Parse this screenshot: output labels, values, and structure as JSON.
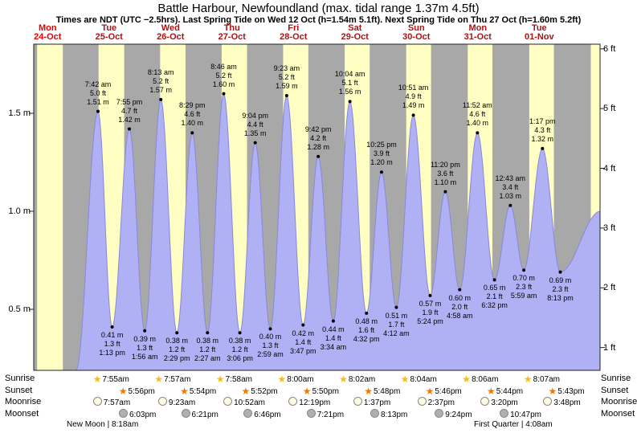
{
  "title": "Battle Harbour, Newfoundland (max. tidal range 1.37m 4.5ft)",
  "subtitle": "Times are NDT (UTC −2.5hrs). Last Spring Tide on Wed 12 Oct (h=1.54m 5.1ft). Next Spring Tide on Thu 27 Oct (h=1.60m 5.2ft)",
  "days": [
    {
      "dow": "Mon",
      "date": "24-Oct",
      "today": true
    },
    {
      "dow": "Tue",
      "date": "25-Oct",
      "today": false
    },
    {
      "dow": "Wed",
      "date": "26-Oct",
      "today": false
    },
    {
      "dow": "Thu",
      "date": "27-Oct",
      "today": false
    },
    {
      "dow": "Fri",
      "date": "28-Oct",
      "today": false
    },
    {
      "dow": "Sat",
      "date": "29-Oct",
      "today": false
    },
    {
      "dow": "Sun",
      "date": "30-Oct",
      "today": false
    },
    {
      "dow": "Mon",
      "date": "31-Oct",
      "today": false
    },
    {
      "dow": "Tue",
      "date": "01-Nov",
      "today": false
    }
  ],
  "chart_data": {
    "type": "area",
    "title": "Battle Harbour, Newfoundland (max. tidal range 1.37m 4.5ft)",
    "x_axis": {
      "unit": "hours since Mon 24 Oct 00:00 NDT",
      "span_days": 9
    },
    "y_axis_left": {
      "unit": "m",
      "tick_labels": [
        "1.5 m",
        "1.0 m",
        "0.5 m"
      ],
      "tick_values": [
        1.5,
        1.0,
        0.5
      ]
    },
    "y_axis_right": {
      "unit": "ft",
      "tick_labels": [
        "6 ft",
        "5 ft",
        "4 ft",
        "3 ft",
        "2 ft",
        "1 ft"
      ],
      "tick_values": [
        6,
        5,
        4,
        3,
        2,
        1
      ]
    },
    "tide_events": [
      {
        "kind": "high",
        "t": 31.7,
        "h": 1.51,
        "time": "7:42 am",
        "ft": "5.0 ft",
        "m": "1.51 m"
      },
      {
        "kind": "low",
        "t": 37.22,
        "h": 0.41,
        "time": "1:13 pm",
        "ft": "1.3 ft",
        "m": "0.41 m"
      },
      {
        "kind": "high",
        "t": 43.92,
        "h": 1.42,
        "time": "7:55 pm",
        "ft": "4.7 ft",
        "m": "1.42 m"
      },
      {
        "kind": "low",
        "t": 49.93,
        "h": 0.39,
        "time": "1:56 am",
        "ft": "1.3 ft",
        "m": "0.39 m"
      },
      {
        "kind": "high",
        "t": 56.22,
        "h": 1.57,
        "time": "8:13 am",
        "ft": "5.2 ft",
        "m": "1.57 m"
      },
      {
        "kind": "low",
        "t": 62.48,
        "h": 0.38,
        "time": "2:29 pm",
        "ft": "1.2 ft",
        "m": "0.38 m"
      },
      {
        "kind": "high",
        "t": 68.48,
        "h": 1.4,
        "time": "8:29 pm",
        "ft": "4.6 ft",
        "m": "1.40 m"
      },
      {
        "kind": "low",
        "t": 74.45,
        "h": 0.38,
        "time": "2:27 am",
        "ft": "1.2 ft",
        "m": "0.38 m"
      },
      {
        "kind": "high",
        "t": 80.77,
        "h": 1.6,
        "time": "8:46 am",
        "ft": "5.2 ft",
        "m": "1.60 m"
      },
      {
        "kind": "low",
        "t": 87.1,
        "h": 0.38,
        "time": "3:06 pm",
        "ft": "1.2 ft",
        "m": "0.38 m"
      },
      {
        "kind": "high",
        "t": 93.07,
        "h": 1.35,
        "time": "9:04 pm",
        "ft": "4.4 ft",
        "m": "1.35 m"
      },
      {
        "kind": "low",
        "t": 98.98,
        "h": 0.4,
        "time": "2:59 am",
        "ft": "1.3 ft",
        "m": "0.40 m"
      },
      {
        "kind": "high",
        "t": 105.38,
        "h": 1.59,
        "time": "9:23 am",
        "ft": "5.2 ft",
        "m": "1.59 m"
      },
      {
        "kind": "low",
        "t": 111.78,
        "h": 0.42,
        "time": "3:47 pm",
        "ft": "1.4 ft",
        "m": "0.42 m"
      },
      {
        "kind": "high",
        "t": 117.7,
        "h": 1.28,
        "time": "9:42 pm",
        "ft": "4.2 ft",
        "m": "1.28 m"
      },
      {
        "kind": "low",
        "t": 123.57,
        "h": 0.44,
        "time": "3:34 am",
        "ft": "1.4 ft",
        "m": "0.44 m"
      },
      {
        "kind": "high",
        "t": 130.07,
        "h": 1.56,
        "time": "10:04 am",
        "ft": "5.1 ft",
        "m": "1.56 m"
      },
      {
        "kind": "low",
        "t": 136.53,
        "h": 0.48,
        "time": "4:32 pm",
        "ft": "1.6 ft",
        "m": "0.48 m"
      },
      {
        "kind": "high",
        "t": 142.42,
        "h": 1.2,
        "time": "10:25 pm",
        "ft": "3.9 ft",
        "m": "1.20 m"
      },
      {
        "kind": "low",
        "t": 148.2,
        "h": 0.51,
        "time": "4:12 am",
        "ft": "1.7 ft",
        "m": "0.51 m"
      },
      {
        "kind": "high",
        "t": 154.85,
        "h": 1.49,
        "time": "10:51 am",
        "ft": "4.9 ft",
        "m": "1.49 m"
      },
      {
        "kind": "low",
        "t": 161.4,
        "h": 0.57,
        "time": "5:24 pm",
        "ft": "1.9 ft",
        "m": "0.57 m"
      },
      {
        "kind": "high",
        "t": 167.33,
        "h": 1.1,
        "time": "11:20 pm",
        "ft": "3.6 ft",
        "m": "1.10 m"
      },
      {
        "kind": "low",
        "t": 172.97,
        "h": 0.6,
        "time": "4:58 am",
        "ft": "2.0 ft",
        "m": "0.60 m"
      },
      {
        "kind": "high",
        "t": 179.87,
        "h": 1.4,
        "time": "11:52 am",
        "ft": "4.6 ft",
        "m": "1.40 m"
      },
      {
        "kind": "low",
        "t": 186.53,
        "h": 0.65,
        "time": "6:32 pm",
        "ft": "2.1 ft",
        "m": "0.65 m"
      },
      {
        "kind": "high",
        "t": 192.72,
        "h": 1.03,
        "time": "12:43 am",
        "ft": "3.4 ft",
        "m": "1.03 m"
      },
      {
        "kind": "low",
        "t": 197.98,
        "h": 0.7,
        "time": "5:59 am",
        "ft": "2.3 ft",
        "m": "0.70 m"
      },
      {
        "kind": "high",
        "t": 205.28,
        "h": 1.32,
        "time": "1:17 pm",
        "ft": "4.3 ft",
        "m": "1.32 m"
      },
      {
        "kind": "low",
        "t": 212.22,
        "h": 0.69,
        "time": "8:13 pm",
        "ft": "2.3 ft",
        "m": "0.69 m"
      }
    ],
    "edge_points": [
      {
        "t": 23.2,
        "h": 0.19
      },
      {
        "t": 227.9,
        "h": 1.0
      }
    ],
    "daylight_bands_hours": [
      [
        7.9,
        17.95
      ],
      [
        31.92,
        41.93
      ],
      [
        55.95,
        65.9
      ],
      [
        79.97,
        89.87
      ],
      [
        104.0,
        113.83
      ],
      [
        128.03,
        137.8
      ],
      [
        152.07,
        161.77
      ],
      [
        176.1,
        185.73
      ],
      [
        200.12,
        209.72
      ],
      [
        224.15,
        234.0
      ]
    ]
  },
  "almanac": {
    "rows": [
      {
        "name": "sunrise",
        "label": "Sunrise",
        "icon": "sunrise-star-icon",
        "entries": [
          {
            "time": "7:55am",
            "t": 31.92
          },
          {
            "time": "7:57am",
            "t": 55.95
          },
          {
            "time": "7:58am",
            "t": 79.97
          },
          {
            "time": "8:00am",
            "t": 104.0
          },
          {
            "time": "8:02am",
            "t": 128.03
          },
          {
            "time": "8:04am",
            "t": 152.07
          },
          {
            "time": "8:06am",
            "t": 176.1
          },
          {
            "time": "8:07am",
            "t": 200.12
          }
        ]
      },
      {
        "name": "sunset",
        "label": "Sunset",
        "icon": "sunset-star-icon",
        "entries": [
          {
            "time": "5:56pm",
            "t": 41.93
          },
          {
            "time": "5:54pm",
            "t": 65.9
          },
          {
            "time": "5:52pm",
            "t": 89.87
          },
          {
            "time": "5:50pm",
            "t": 113.83
          },
          {
            "time": "5:48pm",
            "t": 137.8
          },
          {
            "time": "5:46pm",
            "t": 161.77
          },
          {
            "time": "5:44pm",
            "t": 185.73
          },
          {
            "time": "5:43pm",
            "t": 209.72
          }
        ]
      },
      {
        "name": "moonrise",
        "label": "Moonrise",
        "icon": "moonrise-circle-icon",
        "entries": [
          {
            "time": "7:57am",
            "t": 31.95
          },
          {
            "time": "9:23am",
            "t": 57.38
          },
          {
            "time": "10:52am",
            "t": 82.87
          },
          {
            "time": "12:19pm",
            "t": 108.32
          },
          {
            "time": "1:37pm",
            "t": 133.62
          },
          {
            "time": "2:37pm",
            "t": 158.62
          },
          {
            "time": "3:20pm",
            "t": 183.33
          },
          {
            "time": "3:48pm",
            "t": 207.8
          }
        ]
      },
      {
        "name": "moonset",
        "label": "Moonset",
        "icon": "moonset-circle-icon",
        "entries": [
          {
            "time": "6:03pm",
            "t": 42.05
          },
          {
            "time": "6:21pm",
            "t": 66.35
          },
          {
            "time": "6:46pm",
            "t": 90.77
          },
          {
            "time": "7:21pm",
            "t": 115.35
          },
          {
            "time": "8:13pm",
            "t": 140.22
          },
          {
            "time": "9:24pm",
            "t": 165.4
          },
          {
            "time": "10:47pm",
            "t": 190.78
          }
        ]
      }
    ],
    "captions": {
      "new_moon": "New Moon | 8:18am",
      "first_quarter": "First Quarter | 4:08am"
    }
  },
  "colors": {
    "night_band": "#a8a8a8",
    "day_band": "#ffffc4",
    "tide_fill": "#b0b0f5",
    "tide_stroke": "#8888dd",
    "dot": "#000000",
    "day_label": "#a81414",
    "day_label_today": "#e60000",
    "border": "#222222",
    "sunrise_icon": "#fdb813",
    "sunset_icon": "#f07800",
    "moonrise_icon": "#fffce0",
    "moonset_icon": "#b0b0b0"
  }
}
